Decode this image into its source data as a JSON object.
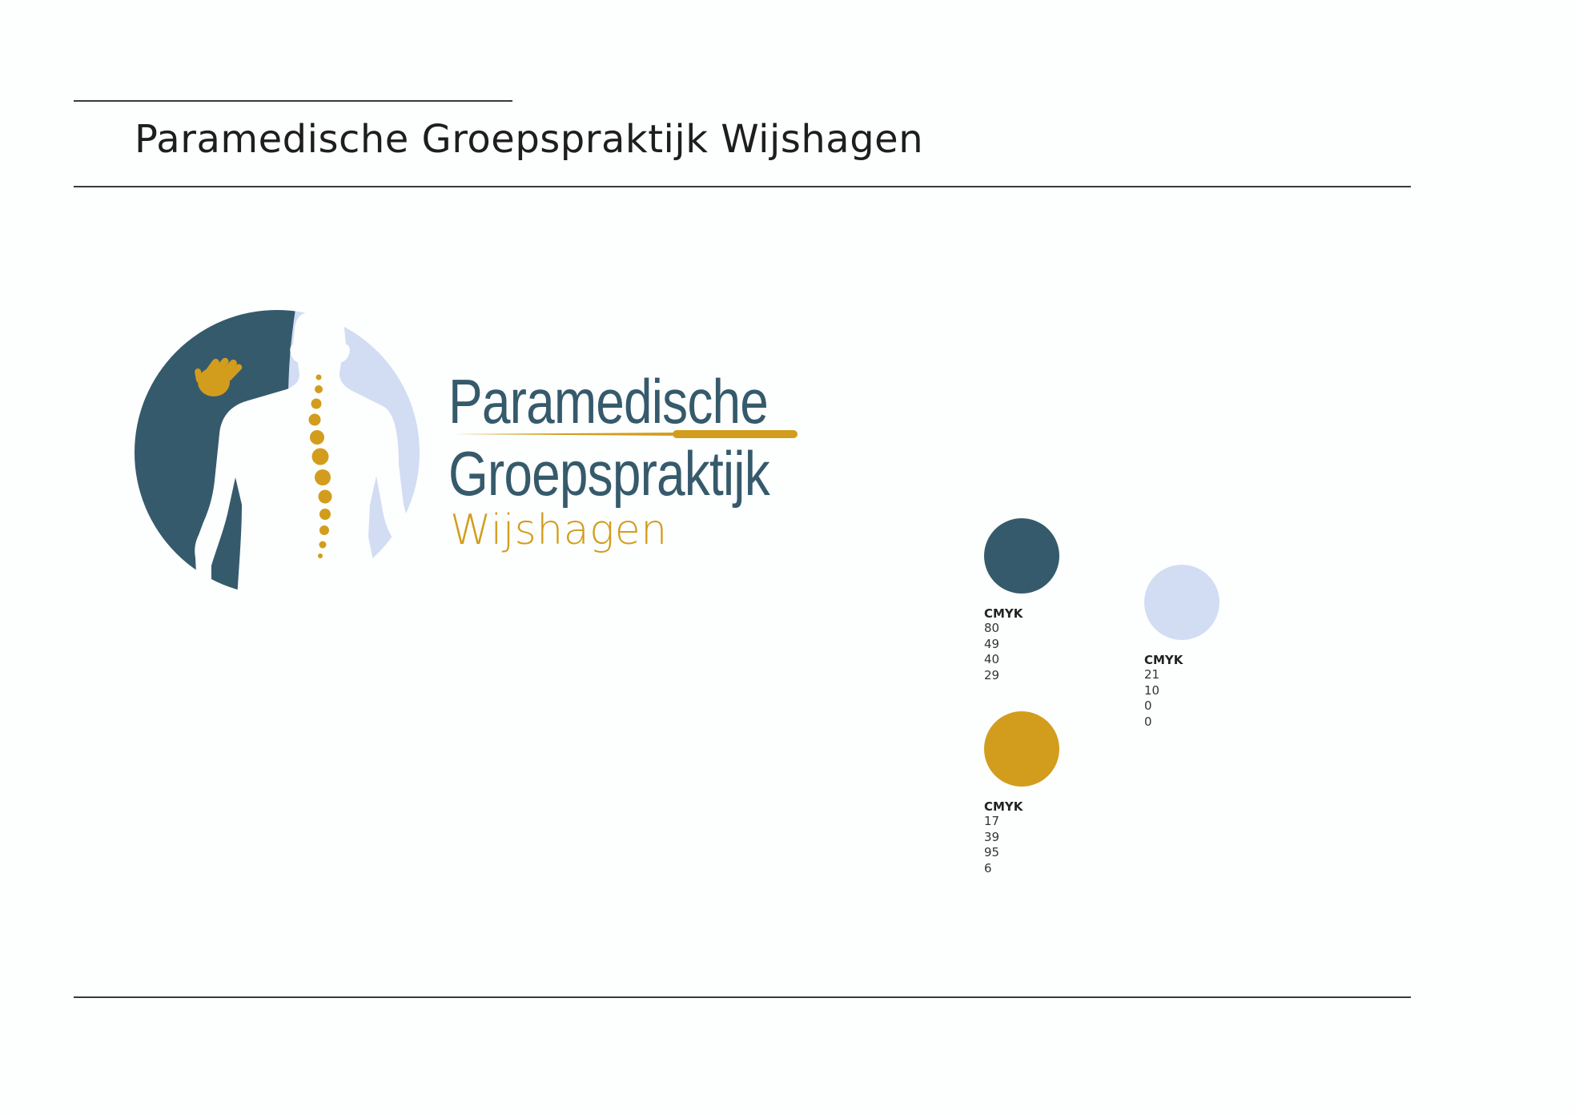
{
  "header": {
    "title": "Paramedische Groepspraktijk Wijshagen"
  },
  "logo": {
    "icon_name": "spine-body-hand-logo-icon",
    "wordmark": {
      "line1": "Paramedische",
      "line2": "Groepspraktijk",
      "line3": "Wijshagen"
    },
    "colors": {
      "dark_blue": "#355a6b",
      "light_blue": "#d2ddf4",
      "gold": "#d29d1d",
      "white": "#ffffff"
    }
  },
  "palette": [
    {
      "color": "#355a6b",
      "label": "CMYK",
      "values": [
        "80",
        "49",
        "40",
        "29"
      ]
    },
    {
      "color": "#d2ddf4",
      "label": "CMYK",
      "values": [
        "21",
        "10",
        "0",
        "0"
      ]
    },
    {
      "color": "#d29d1d",
      "label": "CMYK",
      "values": [
        "17",
        "39",
        "95",
        "6"
      ]
    }
  ]
}
